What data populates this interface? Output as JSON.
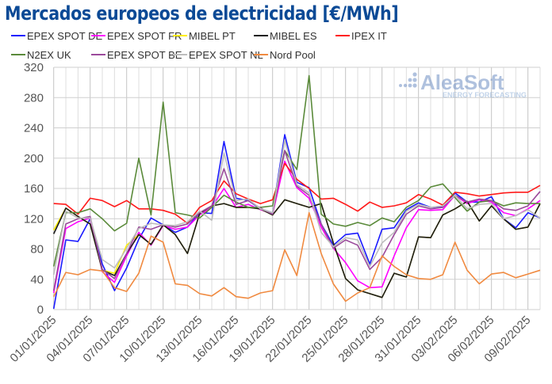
{
  "chart_data": {
    "type": "line",
    "title": "Mercados europeos de electricidad [€/MWh]",
    "xlabel": "",
    "ylabel": "",
    "ylim": [
      0,
      320
    ],
    "yticks": [
      0,
      40,
      80,
      120,
      160,
      200,
      240,
      280,
      320
    ],
    "grid": true,
    "legend_position": "top",
    "x": [
      "01/01/2025",
      "02/01/2025",
      "03/01/2025",
      "04/01/2025",
      "05/01/2025",
      "06/01/2025",
      "07/01/2025",
      "08/01/2025",
      "09/01/2025",
      "10/01/2025",
      "11/01/2025",
      "12/01/2025",
      "13/01/2025",
      "14/01/2025",
      "15/01/2025",
      "16/01/2025",
      "17/01/2025",
      "18/01/2025",
      "19/01/2025",
      "20/01/2025",
      "21/01/2025",
      "22/01/2025",
      "23/01/2025",
      "24/01/2025",
      "25/01/2025",
      "26/01/2025",
      "27/01/2025",
      "28/01/2025",
      "29/01/2025",
      "30/01/2025",
      "31/01/2025",
      "01/02/2025",
      "02/02/2025",
      "03/02/2025",
      "04/02/2025",
      "05/02/2025",
      "06/02/2025",
      "07/02/2025",
      "08/02/2025",
      "09/02/2025",
      "10/02/2025"
    ],
    "xtick_labels": [
      "01/01/2025",
      "04/01/2025",
      "07/01/2025",
      "10/01/2025",
      "13/01/2025",
      "16/01/2025",
      "19/01/2025",
      "22/01/2025",
      "25/01/2025",
      "28/01/2025",
      "31/01/2025",
      "03/02/2025",
      "06/02/2025",
      "09/02/2025"
    ],
    "series": [
      {
        "name": "EPEX SPOT DE",
        "color": "#1a1aff",
        "values": [
          1,
          92,
          90,
          120,
          60,
          25,
          55,
          93,
          121,
          112,
          102,
          109,
          128,
          127,
          222,
          147,
          144,
          133,
          128,
          231,
          168,
          161,
          113,
          85,
          99,
          101,
          60,
          106,
          108,
          132,
          141,
          135,
          136,
          154,
          142,
          142,
          149,
          120,
          108,
          128,
          121
        ]
      },
      {
        "name": "EPEX SPOT FR",
        "color": "#ff00ff",
        "values": [
          22,
          107,
          116,
          121,
          50,
          36,
          71,
          102,
          85,
          111,
          106,
          109,
          125,
          135,
          160,
          135,
          139,
          132,
          126,
          196,
          161,
          147,
          109,
          81,
          62,
          38,
          29,
          30,
          71,
          108,
          132,
          131,
          132,
          151,
          140,
          145,
          142,
          128,
          124,
          133,
          144
        ]
      },
      {
        "name": "MIBEL PT",
        "color": "#ffee00",
        "values": [
          105,
          134,
          123,
          113,
          52,
          48,
          85,
          99,
          86,
          112,
          99,
          74,
          127,
          137,
          140,
          135,
          135,
          133,
          125,
          145,
          140,
          135,
          140,
          88,
          41,
          26,
          21,
          16,
          48,
          43,
          96,
          95,
          125,
          133,
          143,
          117,
          137,
          120,
          106,
          109,
          140
        ]
      },
      {
        "name": "MIBEL ES",
        "color": "#1a1a1a",
        "values": [
          100,
          134,
          123,
          113,
          52,
          45,
          74,
          99,
          86,
          112,
          99,
          74,
          127,
          137,
          140,
          135,
          135,
          133,
          125,
          145,
          140,
          135,
          140,
          88,
          41,
          26,
          21,
          16,
          48,
          43,
          96,
          95,
          125,
          133,
          143,
          117,
          137,
          120,
          106,
          109,
          140
        ]
      },
      {
        "name": "IPEX IT",
        "color": "#ff1a1a",
        "values": [
          140,
          139,
          126,
          147,
          144,
          136,
          144,
          133,
          133,
          131,
          126,
          114,
          135,
          144,
          170,
          153,
          146,
          140,
          145,
          193,
          172,
          160,
          146,
          147,
          139,
          130,
          142,
          135,
          137,
          141,
          152,
          146,
          138,
          155,
          153,
          150,
          152,
          154,
          155,
          155,
          164
        ]
      },
      {
        "name": "N2EX UK",
        "color": "#5a8a3a",
        "values": [
          57,
          128,
          128,
          133,
          120,
          104,
          114,
          200,
          125,
          274,
          128,
          125,
          121,
          135,
          151,
          142,
          135,
          135,
          137,
          210,
          185,
          309,
          126,
          113,
          110,
          115,
          111,
          121,
          116,
          135,
          144,
          162,
          166,
          148,
          130,
          142,
          144,
          137,
          141,
          140,
          140
        ]
      },
      {
        "name": "EPEX SPOT BE",
        "color": "#9b4a9b",
        "values": [
          25,
          113,
          120,
          123,
          53,
          41,
          74,
          109,
          106,
          112,
          109,
          113,
          128,
          137,
          186,
          139,
          144,
          134,
          126,
          210,
          163,
          151,
          113,
          81,
          92,
          85,
          53,
          69,
          99,
          126,
          137,
          133,
          135,
          151,
          142,
          146,
          144,
          133,
          131,
          137,
          156
        ]
      },
      {
        "name": "EPEX SPOT NL",
        "color": "#bdbdbd",
        "values": [
          46,
          130,
          121,
          121,
          66,
          55,
          81,
          107,
          114,
          112,
          111,
          116,
          130,
          118,
          207,
          144,
          146,
          133,
          128,
          224,
          165,
          154,
          102,
          83,
          95,
          92,
          57,
          88,
          102,
          130,
          139,
          135,
          137,
          151,
          133,
          139,
          140,
          120,
          124,
          132,
          121
        ]
      },
      {
        "name": "Nord Pool",
        "color": "#f08a40",
        "values": [
          17,
          49,
          46,
          53,
          51,
          29,
          24,
          48,
          97,
          89,
          34,
          32,
          21,
          18,
          29,
          17,
          15,
          22,
          25,
          79,
          45,
          128,
          74,
          34,
          11,
          22,
          29,
          71,
          57,
          46,
          41,
          40,
          46,
          89,
          52,
          34,
          47,
          49,
          42,
          47,
          52
        ]
      }
    ]
  },
  "watermark": {
    "brand": "AleaSoft",
    "tagline": "ENERGY FORECASTING"
  }
}
